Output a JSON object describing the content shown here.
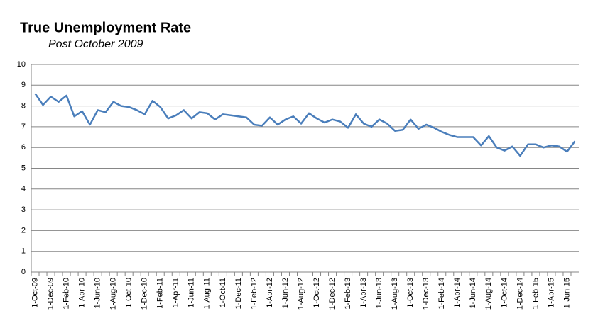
{
  "chart_data": {
    "type": "line",
    "title": "True Unemployment Rate",
    "subtitle": "Post October 2009",
    "categories": [
      "1-Oct-09",
      null,
      "1-Dec-09",
      null,
      "1-Feb-10",
      null,
      "1-Apr-10",
      null,
      "1-Jun-10",
      null,
      "1-Aug-10",
      null,
      "1-Oct-10",
      null,
      "1-Dec-10",
      null,
      "1-Feb-11",
      null,
      "1-Apr-11",
      null,
      "1-Jun-11",
      null,
      "1-Aug-11",
      null,
      "1-Oct-11",
      null,
      "1-Dec-11",
      null,
      "1-Feb-12",
      null,
      "1-Apr-12",
      null,
      "1-Jun-12",
      null,
      "1-Aug-12",
      null,
      "1-Oct-12",
      null,
      "1-Dec-12",
      null,
      "1-Feb-13",
      null,
      "1-Apr-13",
      null,
      "1-Jun-13",
      null,
      "1-Aug-13",
      null,
      "1-Oct-13",
      null,
      "1-Dec-13",
      null,
      "1-Feb-14",
      null,
      "1-Apr-14",
      null,
      "1-Jun-14",
      null,
      "1-Aug-14",
      null,
      "1-Oct-14",
      null,
      "1-Dec-14",
      null,
      "1-Feb-15",
      null,
      "1-Apr-15",
      null,
      "1-Jun-15",
      null
    ],
    "values": [
      8.6,
      8.05,
      8.45,
      8.2,
      8.5,
      7.5,
      7.75,
      7.1,
      7.8,
      7.7,
      8.2,
      8.0,
      7.95,
      7.8,
      7.6,
      8.25,
      7.95,
      7.4,
      7.55,
      7.8,
      7.4,
      7.7,
      7.65,
      7.35,
      7.6,
      7.55,
      7.5,
      7.45,
      7.1,
      7.05,
      7.45,
      7.1,
      7.35,
      7.5,
      7.15,
      7.65,
      7.4,
      7.2,
      7.35,
      7.25,
      6.95,
      7.6,
      7.15,
      7.0,
      7.35,
      7.15,
      6.8,
      6.85,
      7.35,
      6.9,
      7.1,
      6.95,
      6.75,
      6.6,
      6.5,
      6.5,
      6.5,
      6.1,
      6.55,
      6.0,
      5.85,
      6.05,
      5.6,
      6.15,
      6.15,
      6.0,
      6.1,
      6.05,
      5.8,
      6.3
    ],
    "color": "#4a7ebb",
    "ylim": [
      0,
      10
    ],
    "yticks": [
      0,
      1,
      2,
      3,
      4,
      5,
      6,
      7,
      8,
      9,
      10
    ],
    "grid": true
  }
}
